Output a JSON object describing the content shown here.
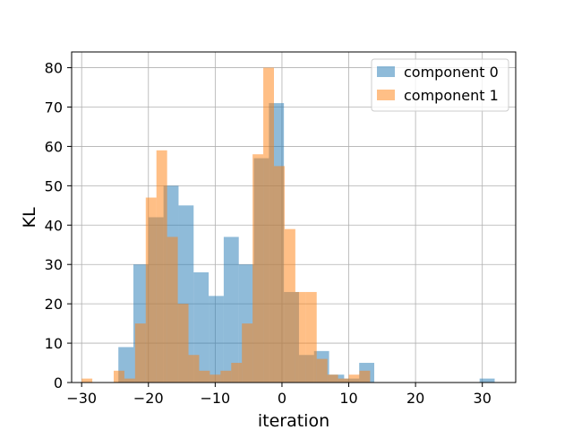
{
  "chart_data": {
    "type": "histogram",
    "title": "",
    "xlabel": "iteration",
    "ylabel": "KL",
    "xlim": [
      -31.5,
      35
    ],
    "ylim": [
      0,
      84
    ],
    "xticks": [
      -30,
      -20,
      -10,
      0,
      10,
      20,
      30
    ],
    "yticks": [
      0,
      10,
      20,
      30,
      40,
      50,
      60,
      70,
      80
    ],
    "grid": true,
    "legend_position": "top-right",
    "series": [
      {
        "name": "component 0",
        "color": "#1f77b4",
        "alpha": 0.5,
        "bin_start": -24.5,
        "bin_width": 2.254,
        "values": [
          9,
          30,
          42,
          50,
          45,
          28,
          22,
          37,
          30,
          57,
          71,
          23,
          7,
          8,
          2,
          1,
          5,
          0,
          0,
          0,
          0,
          0,
          0,
          0,
          1
        ]
      },
      {
        "name": "component 1",
        "color": "#ff7f0e",
        "alpha": 0.5,
        "bin_start": -30.0,
        "bin_width": 1.6,
        "values": [
          1,
          0,
          0,
          3,
          1,
          15,
          47,
          59,
          37,
          20,
          7,
          3,
          2,
          3,
          5,
          15,
          58,
          80,
          55,
          39,
          23,
          23,
          6,
          2,
          1,
          2,
          3
        ]
      }
    ]
  }
}
